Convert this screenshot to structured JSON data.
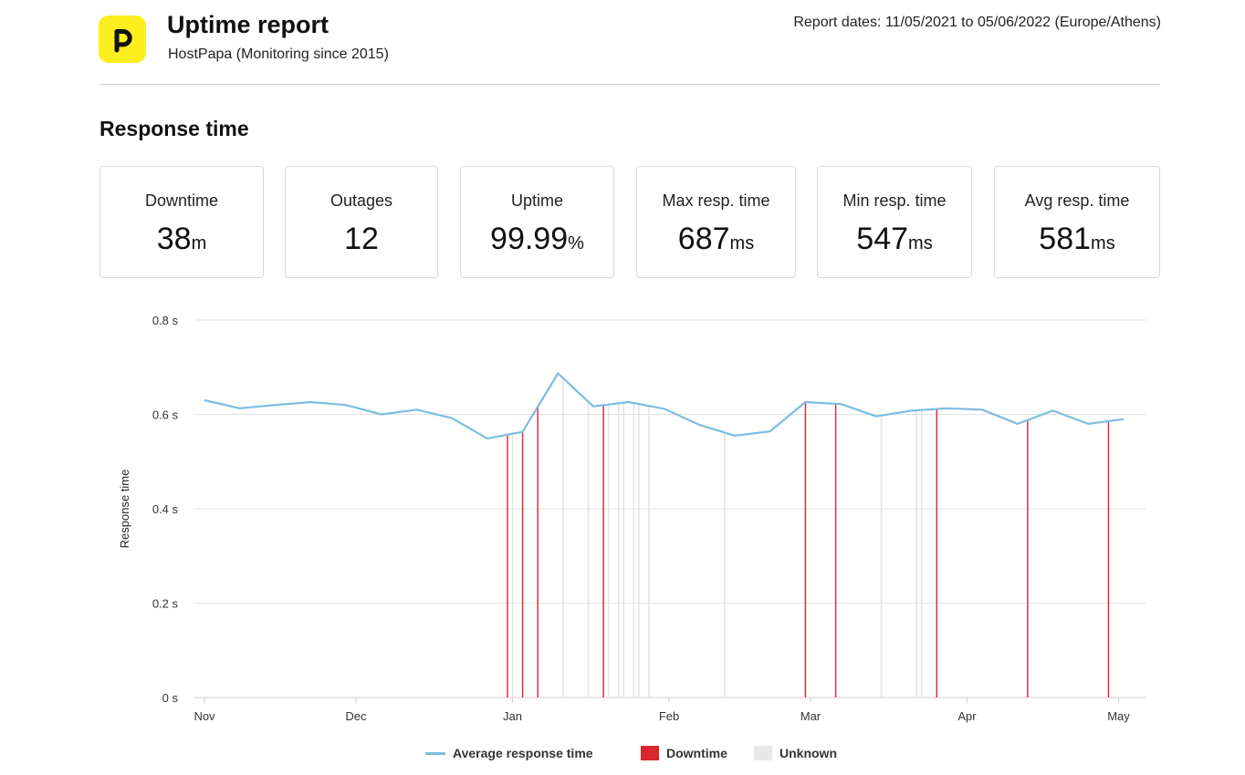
{
  "header": {
    "logo_icon": "hostpapa-logo-icon",
    "title": "Uptime report",
    "subtitle": "HostPapa (Monitoring since 2015)",
    "report_dates": "Report dates: 11/05/2021 to 05/06/2022 (Europe/Athens)"
  },
  "section_title": "Response time",
  "stats": [
    {
      "label": "Downtime",
      "value": "38",
      "unit": "m"
    },
    {
      "label": "Outages",
      "value": "12",
      "unit": ""
    },
    {
      "label": "Uptime",
      "value": "99.99",
      "unit": "%"
    },
    {
      "label": "Max resp. time",
      "value": "687",
      "unit": "ms"
    },
    {
      "label": "Min resp. time",
      "value": "547",
      "unit": "ms"
    },
    {
      "label": "Avg resp. time",
      "value": "581",
      "unit": "ms"
    }
  ],
  "legend": {
    "average": "Average response time",
    "downtime": "Downtime",
    "unknown": "Unknown"
  },
  "chart_data": {
    "type": "line",
    "title": "",
    "xlabel": "",
    "ylabel": "Response time",
    "x_ticks": [
      {
        "label": "Nov",
        "date": "2021-11-01"
      },
      {
        "label": "Dec",
        "date": "2021-12-01"
      },
      {
        "label": "Jan",
        "date": "2022-01-01"
      },
      {
        "label": "Feb",
        "date": "2022-02-01"
      },
      {
        "label": "Mar",
        "date": "2022-03-01"
      },
      {
        "label": "Apr",
        "date": "2022-04-01"
      },
      {
        "label": "May",
        "date": "2022-05-01"
      }
    ],
    "y_ticks": [
      {
        "label": "0 s",
        "value": 0
      },
      {
        "label": "0.2 s",
        "value": 0.2
      },
      {
        "label": "0.4 s",
        "value": 0.4
      },
      {
        "label": "0.6 s",
        "value": 0.6
      },
      {
        "label": "0.8 s",
        "value": 0.8
      }
    ],
    "xlim": [
      "2021-11-01",
      "2022-05-08"
    ],
    "ylim": [
      0,
      0.8
    ],
    "grid": true,
    "legend_position": "bottom",
    "colors": {
      "line": "#7cbde0",
      "downtime": "#d9262b",
      "unknown": "#e8e8e8",
      "grid": "#e2e2e2"
    },
    "series": [
      {
        "name": "Average response time",
        "points": [
          [
            "2021-11-01",
            0.63
          ],
          [
            "2021-11-08",
            0.613
          ],
          [
            "2021-11-15",
            0.62
          ],
          [
            "2021-11-22",
            0.626
          ],
          [
            "2021-11-29",
            0.62
          ],
          [
            "2021-12-06",
            0.6
          ],
          [
            "2021-12-13",
            0.61
          ],
          [
            "2021-12-20",
            0.592
          ],
          [
            "2021-12-27",
            0.549
          ],
          [
            "2022-01-03",
            0.563
          ],
          [
            "2022-01-10",
            0.687
          ],
          [
            "2022-01-17",
            0.617
          ],
          [
            "2022-01-24",
            0.626
          ],
          [
            "2022-01-31",
            0.612
          ],
          [
            "2022-02-07",
            0.578
          ],
          [
            "2022-02-14",
            0.555
          ],
          [
            "2022-02-21",
            0.564
          ],
          [
            "2022-02-28",
            0.626
          ],
          [
            "2022-03-07",
            0.622
          ],
          [
            "2022-03-14",
            0.596
          ],
          [
            "2022-03-21",
            0.608
          ],
          [
            "2022-03-28",
            0.613
          ],
          [
            "2022-04-04",
            0.61
          ],
          [
            "2022-04-11",
            0.58
          ],
          [
            "2022-04-18",
            0.608
          ],
          [
            "2022-04-25",
            0.58
          ],
          [
            "2022-05-02",
            0.59
          ]
        ]
      }
    ],
    "downtime_dates": [
      "2021-12-31",
      "2022-01-03",
      "2022-01-06",
      "2022-01-19",
      "2022-02-28",
      "2022-03-06",
      "2022-03-26",
      "2022-04-13",
      "2022-04-29"
    ],
    "unknown_dates": [
      "2022-01-01",
      "2022-01-11",
      "2022-01-16",
      "2022-01-20",
      "2022-01-22",
      "2022-01-23",
      "2022-01-25",
      "2022-01-26",
      "2022-01-28",
      "2022-02-12",
      "2022-03-15",
      "2022-03-22",
      "2022-03-23"
    ]
  }
}
